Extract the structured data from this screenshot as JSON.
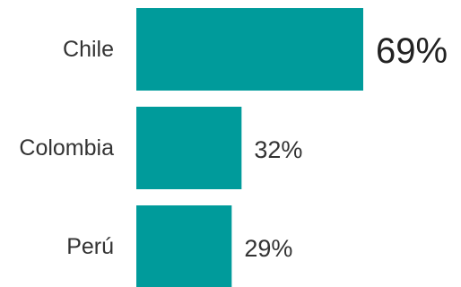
{
  "chart_data": {
    "type": "bar",
    "orientation": "horizontal",
    "categories": [
      "Chile",
      "Colombia",
      "Perú"
    ],
    "values": [
      69,
      32,
      29
    ],
    "value_labels": [
      "69%",
      "32%",
      "29%"
    ],
    "unit": "%",
    "xlim": [
      0,
      100
    ],
    "grid": false,
    "legend": "none",
    "highlight_index": 0,
    "colors": {
      "bar": "#009B9B",
      "text": "#333333",
      "background": "#ffffff"
    }
  }
}
